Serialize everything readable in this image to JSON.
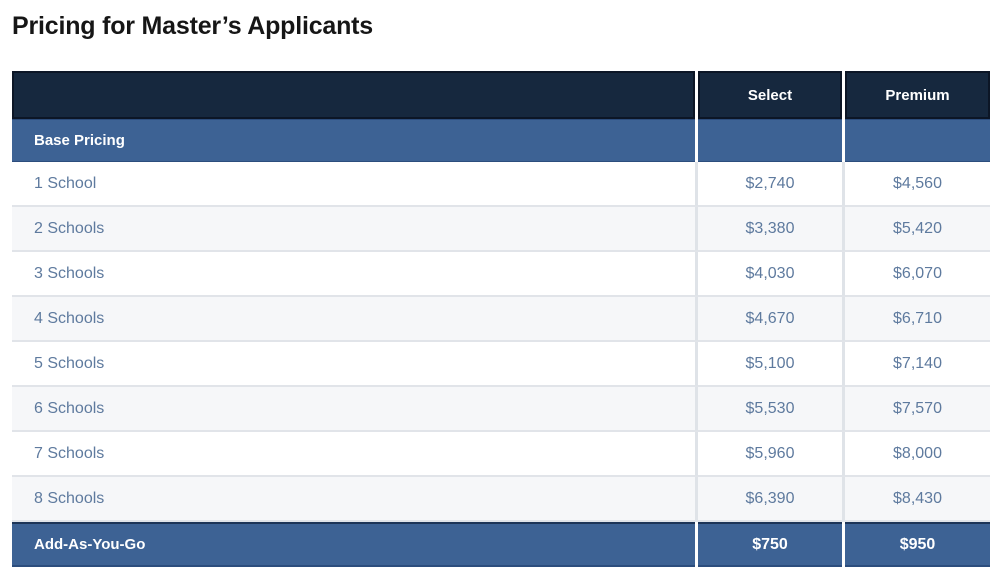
{
  "page_title": "Pricing for Master’s Applicants",
  "colors": {
    "header_bg": "#16283e",
    "band_bg": "#3d6294",
    "row_text": "#5e7a9e",
    "stripe_bg": "#f6f7f9",
    "header_text": "#ffffff"
  },
  "table": {
    "header": {
      "select": "Select",
      "premium": "Premium"
    },
    "section_label": "Base Pricing",
    "rows": [
      {
        "label": "1 School",
        "select": "$2,740",
        "premium": "$4,560"
      },
      {
        "label": "2 Schools",
        "select": "$3,380",
        "premium": "$5,420"
      },
      {
        "label": "3 Schools",
        "select": "$4,030",
        "premium": "$6,070"
      },
      {
        "label": "4 Schools",
        "select": "$4,670",
        "premium": "$6,710"
      },
      {
        "label": "5 Schools",
        "select": "$5,100",
        "premium": "$7,140"
      },
      {
        "label": "6 Schools",
        "select": "$5,530",
        "premium": "$7,570"
      },
      {
        "label": "7 Schools",
        "select": "$5,960",
        "premium": "$8,000"
      },
      {
        "label": "8 Schools",
        "select": "$6,390",
        "premium": "$8,430"
      }
    ],
    "footer": {
      "label": "Add-As-You-Go",
      "select": "$750",
      "premium": "$950"
    }
  }
}
